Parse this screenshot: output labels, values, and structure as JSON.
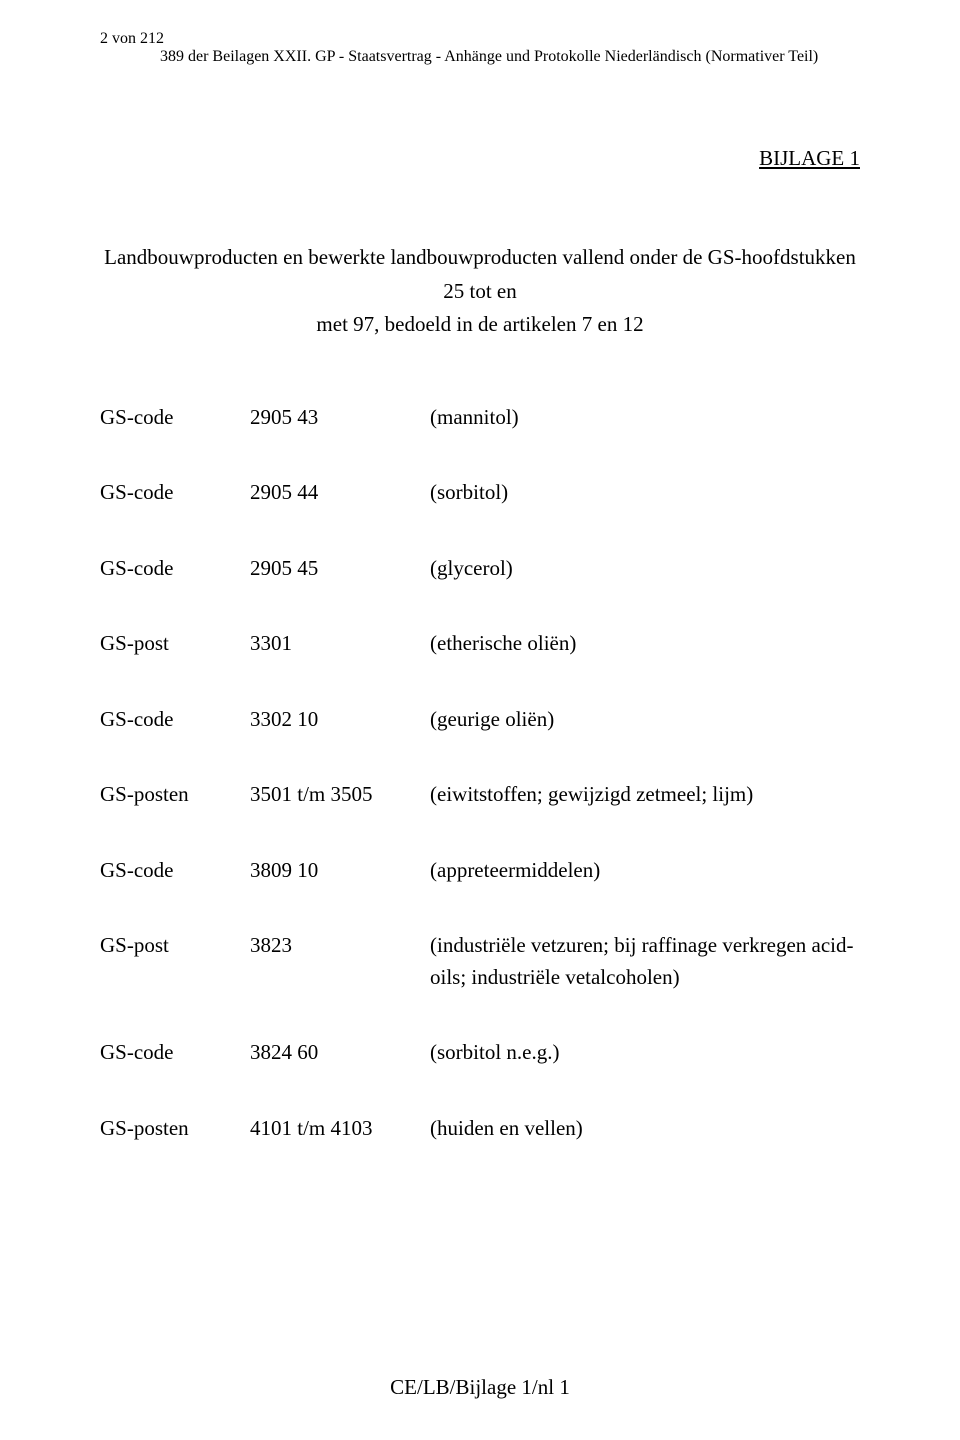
{
  "header": {
    "page_of": "2 von 212",
    "doc_ref": "389 der Beilagen XXII. GP - Staatsvertrag - Anhänge und Protokolle Niederländisch (Normativer Teil)"
  },
  "annex_title": "BIJLAGE 1",
  "intro": {
    "line1": "Landbouwproducten en bewerkte landbouwproducten vallend onder de GS-hoofdstukken 25 tot en",
    "line2": "met 97, bedoeld in de artikelen 7 en 12"
  },
  "rows": [
    {
      "c1": "GS-code",
      "c2": "2905 43",
      "c3": "(mannitol)"
    },
    {
      "c1": "GS-code",
      "c2": "2905 44",
      "c3": "(sorbitol)"
    },
    {
      "c1": "GS-code",
      "c2": "2905 45",
      "c3": "(glycerol)"
    },
    {
      "c1": "GS-post",
      "c2": "3301",
      "c3": "(etherische oliën)"
    },
    {
      "c1": "GS-code",
      "c2": "3302 10",
      "c3": "(geurige oliën)"
    },
    {
      "c1": "GS-posten",
      "c2": "3501 t/m 3505",
      "c3": "(eiwitstoffen; gewijzigd zetmeel; lijm)"
    },
    {
      "c1": "GS-code",
      "c2": "3809 10",
      "c3": "(appreteermiddelen)"
    },
    {
      "c1": "GS-post",
      "c2": "3823",
      "c3": "(industriële vetzuren; bij raffinage verkregen acid-oils; industriële vetalcoholen)"
    },
    {
      "c1": "GS-code",
      "c2": "3824 60",
      "c3": "(sorbitol n.e.g.)"
    },
    {
      "c1": "GS-posten",
      "c2": "4101 t/m 4103",
      "c3": "(huiden en vellen)"
    }
  ],
  "footer": "CE/LB/Bijlage 1/nl 1",
  "style": {
    "font_family": "Times New Roman",
    "body_fontsize_pt": 16,
    "header_fontsize_pt": 12,
    "text_color": "#000000",
    "background_color": "#ffffff"
  }
}
